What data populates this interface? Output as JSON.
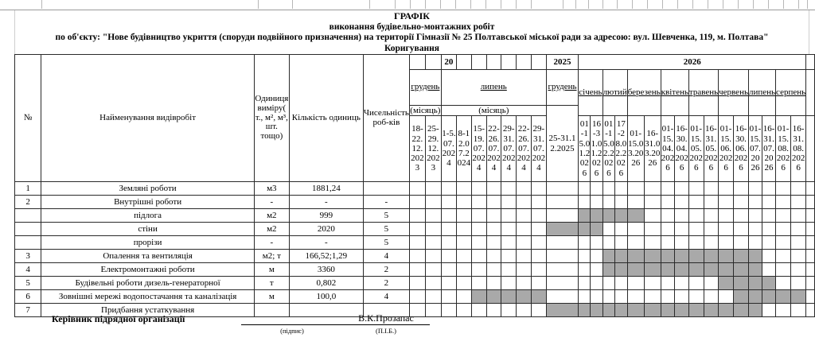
{
  "title": {
    "line1": "ГРАФІК",
    "line2": "виконання будівельно-монтажних робіт",
    "line3": "по об'єкту: \"Нове будівництво укриття (споруди подвійного призначення) на території Гімназії № 25 Полтавської міської ради за адресою: вул. Шевченка, 119,  м. Полтава\"",
    "line4": "Коригування"
  },
  "table": {
    "left_headers": [
      "№",
      "Найменування видівробіт",
      "Одиниця виміру( т., м², м³, шт. тощо)",
      "Кількість одиниць",
      "Чисельність роб-ків"
    ],
    "year_row": [
      [
        "",
        1
      ],
      [
        "",
        1
      ],
      [
        "20",
        1
      ],
      [
        "",
        1
      ],
      [
        "",
        1
      ],
      [
        "",
        1
      ],
      [
        "",
        1
      ],
      [
        "",
        1
      ],
      [
        "",
        1
      ],
      [
        "2025",
        1
      ],
      [
        "2026",
        16
      ],
      [
        "",
        1
      ]
    ],
    "month_row": [
      [
        "грудень",
        2,
        "simple"
      ],
      [
        "липень",
        7,
        "simple"
      ],
      [
        "грудень",
        1,
        "date"
      ],
      [
        "січень",
        2,
        "tall"
      ],
      [
        "лютий",
        2,
        "tall"
      ],
      [
        "березень",
        2,
        "tall"
      ],
      [
        "квітень",
        2,
        "tall"
      ],
      [
        "травень",
        2,
        "tall"
      ],
      [
        "червень",
        2,
        "tall"
      ],
      [
        "липень",
        2,
        "tall"
      ],
      [
        "серпень",
        2,
        "tall"
      ],
      [
        "",
        1,
        "tall"
      ]
    ],
    "misyats_label": "(місяць)",
    "big_date": "25-31.12.2025",
    "weeks": [
      "18-22.12.2023",
      "25-29.12.2023",
      "1-5.07.2024",
      "8-12.07.2024",
      "15-19.07.2024",
      "22-26.07.2024",
      "29-31.07.2024",
      "22-26.07.2024",
      "29-31.07.2024",
      "25-31.12.2025",
      "01-15.01.2026",
      "16-31.01.2026",
      "01-15.02.2026",
      "17-28.02.2026",
      "01-15.03.2026",
      "16-31.03.2026",
      "01-15.04.2026",
      "16-30.04.2026",
      "01-15.05.2026",
      "16-31.05.2026",
      "01-15.06.2026",
      "16-30.06.2026",
      "01-15.07.2026",
      "16-31.07.2026",
      "01-15.08.2026",
      "16-31.08.2026",
      ""
    ],
    "rows": [
      {
        "num": "1",
        "name": "Земляні роботи",
        "unit": "м3",
        "qty": "1881,24",
        "workers": "",
        "bars": []
      },
      {
        "num": "2",
        "name": "Внутрішні роботи",
        "unit": "-",
        "qty": "-",
        "workers": "-",
        "bars": []
      },
      {
        "num": "",
        "name": "підлога",
        "unit": "м2",
        "qty": "999",
        "workers": "5",
        "bars": [
          [
            11,
            15
          ]
        ]
      },
      {
        "num": "",
        "name": "стіни",
        "unit": "м2",
        "qty": "2020",
        "workers": "5",
        "bars": [
          [
            10,
            12
          ]
        ]
      },
      {
        "num": "",
        "name": "прорізи",
        "unit": "-",
        "qty": "-",
        "workers": "5",
        "bars": []
      },
      {
        "num": "3",
        "name": "Опалення та вентиляція",
        "unit": "м2; т",
        "qty": "166,52;1,29",
        "workers": "4",
        "bars": [
          [
            13,
            23
          ]
        ]
      },
      {
        "num": "4",
        "name": "Електромонтажні роботи",
        "unit": "м",
        "qty": "3360",
        "workers": "2",
        "bars": [
          [
            13,
            23
          ]
        ]
      },
      {
        "num": "5",
        "name": "Будівельні роботи дизель-генераторної",
        "unit": "т",
        "qty": "0,802",
        "workers": "2",
        "bars": [
          [
            21,
            24
          ]
        ]
      },
      {
        "num": "6",
        "name": "Зовнішні мережі водопостачання та каналізація",
        "unit": "м",
        "qty": "100,0",
        "workers": "4",
        "bars": [
          [
            5,
            9
          ],
          [
            22,
            26
          ]
        ]
      },
      {
        "num": "7",
        "name": "Придбання устаткування",
        "unit": "",
        "qty": "",
        "workers": "",
        "bars": [
          [
            10,
            23
          ]
        ]
      }
    ],
    "bar_color": "#a9a9a9"
  },
  "footer": {
    "manager_label": "Керівник підрядної організації",
    "signature_caption": "(підпис)",
    "name": "В.К.Прозапас",
    "name_caption": "(П.І.Б.)"
  }
}
